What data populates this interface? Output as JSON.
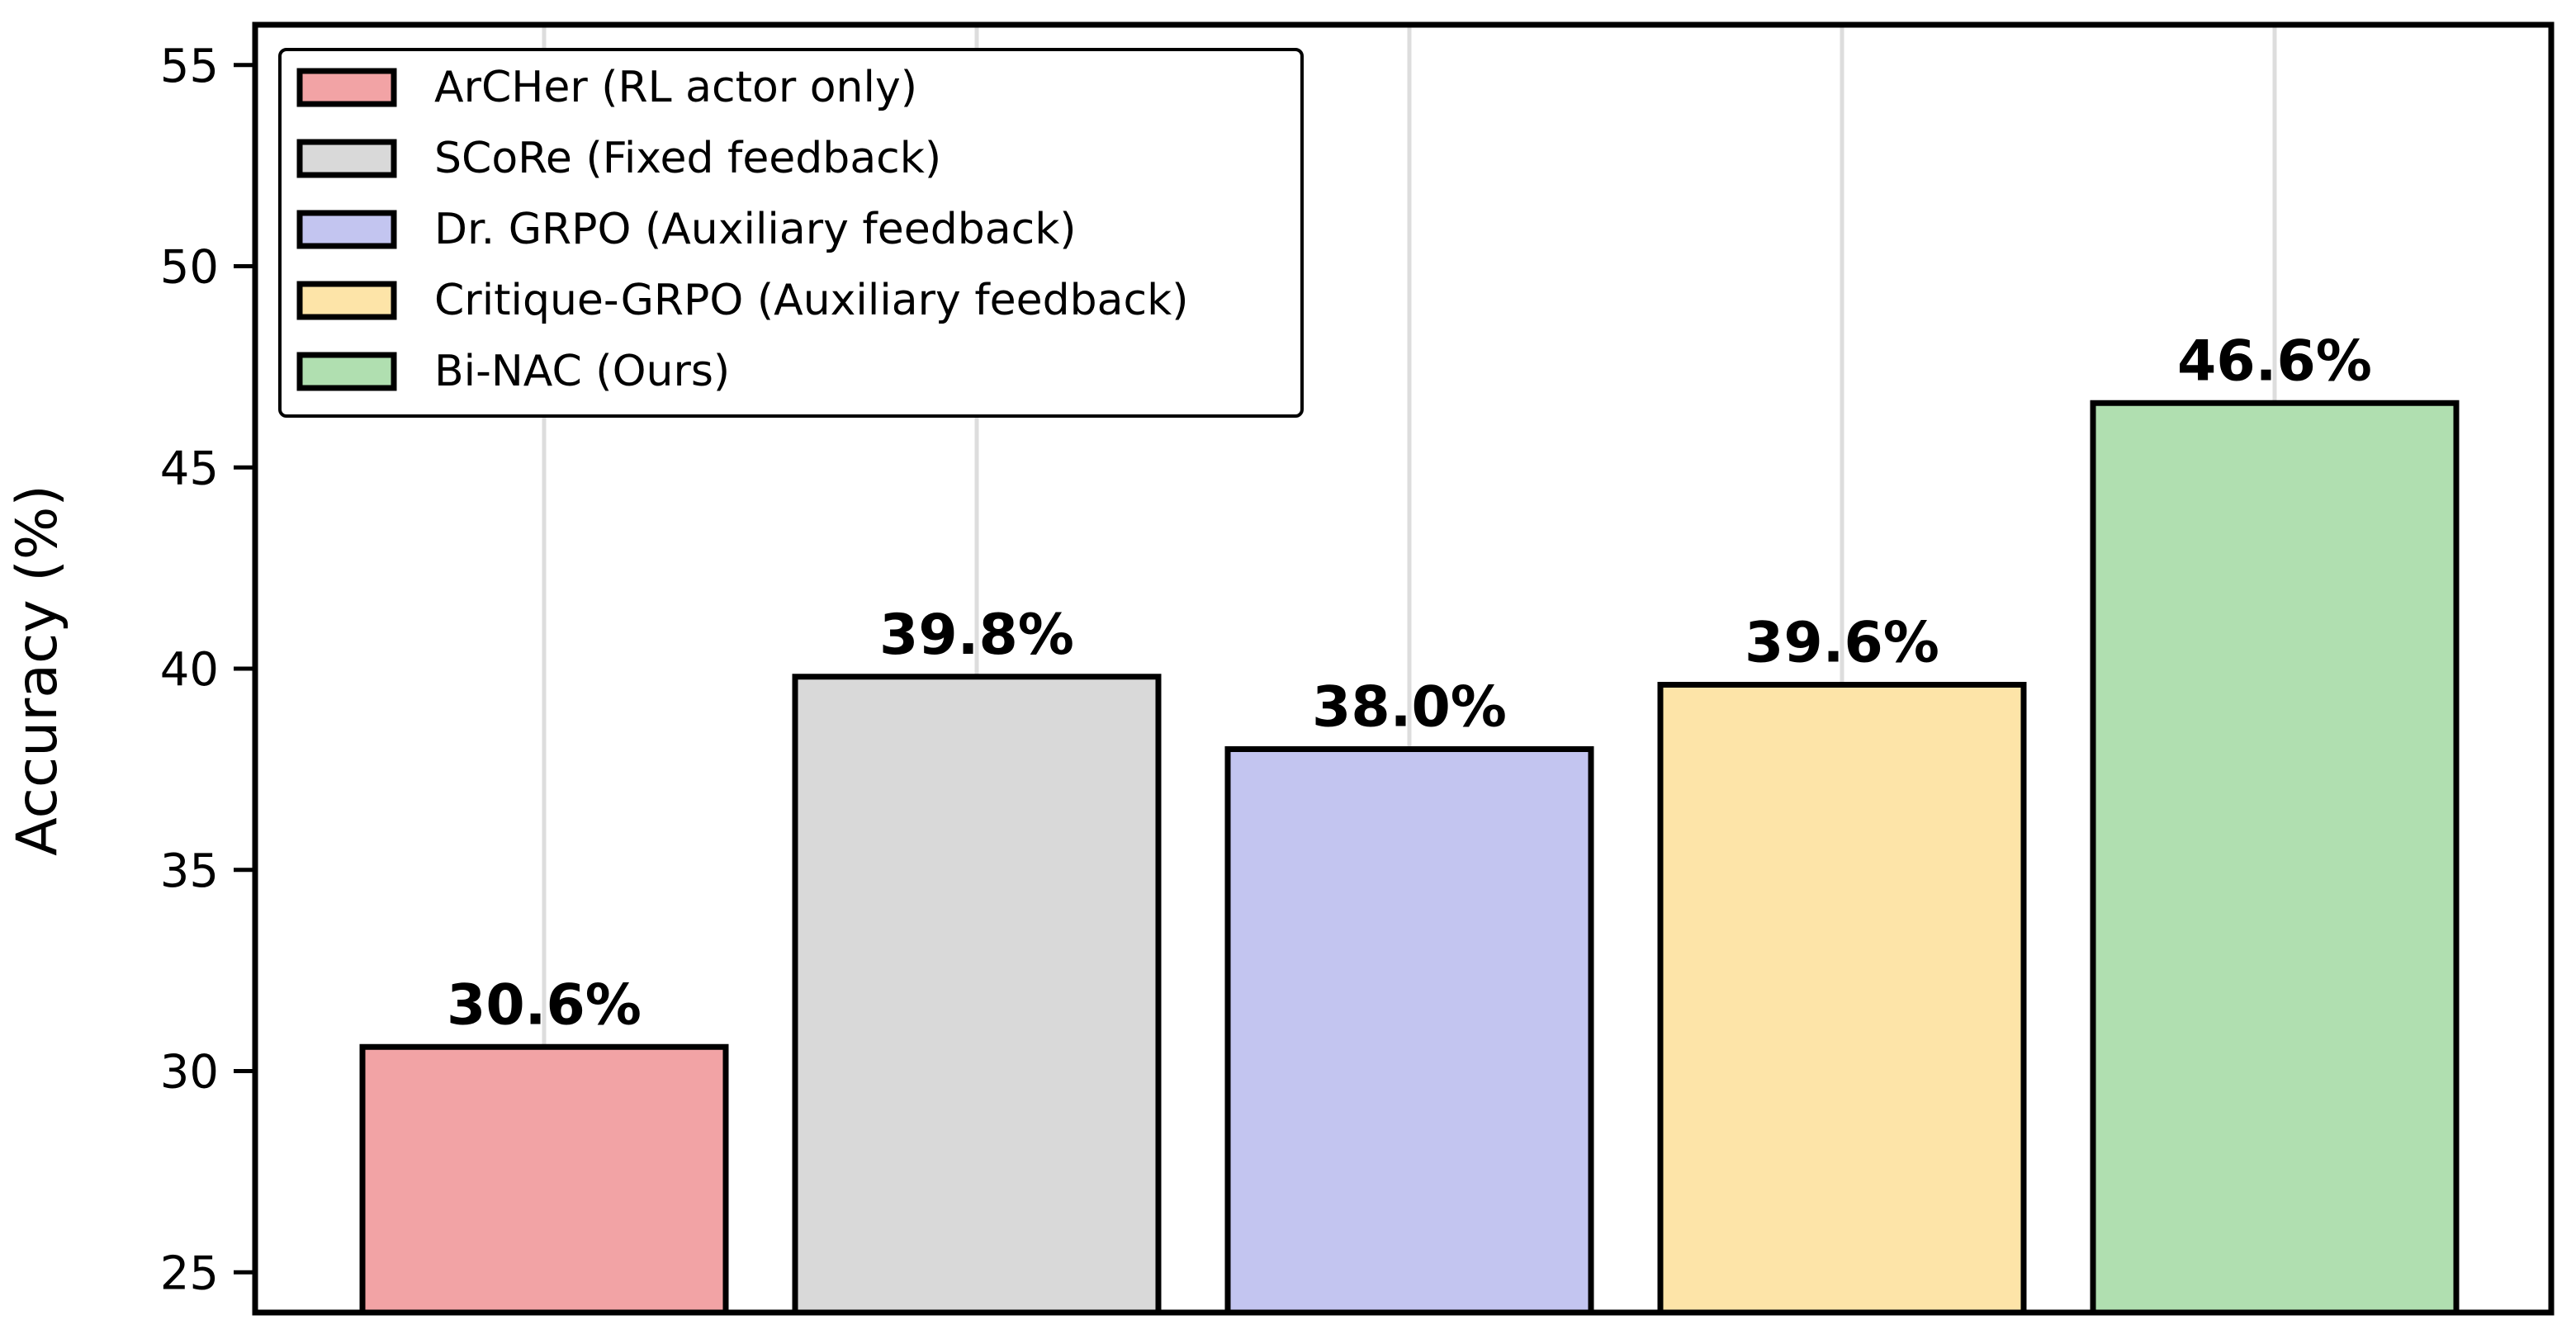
{
  "chart_data": {
    "type": "bar",
    "title": "",
    "xlabel": "",
    "ylabel": "Accuracy (%)",
    "ylim": [
      24,
      56
    ],
    "yticks": [
      25,
      30,
      35,
      40,
      45,
      50,
      55
    ],
    "grid": "vertical",
    "legend_position": "top-left",
    "categories": [
      "ArCHer (RL actor only)",
      "SCoRe (Fixed feedback)",
      "Dr. GRPO (Auxiliary feedback)",
      "Critique-GRPO (Auxiliary feedback)",
      "Bi-NAC (Ours)"
    ],
    "values": [
      30.6,
      39.8,
      38.0,
      39.6,
      46.6
    ],
    "data_labels": [
      "30.6%",
      "39.8%",
      "38.0%",
      "39.6%",
      "46.6%"
    ],
    "colors": [
      "#f2a3a5",
      "#d9d9d9",
      "#c3c5f0",
      "#fde4a8",
      "#b0dfb0"
    ]
  }
}
